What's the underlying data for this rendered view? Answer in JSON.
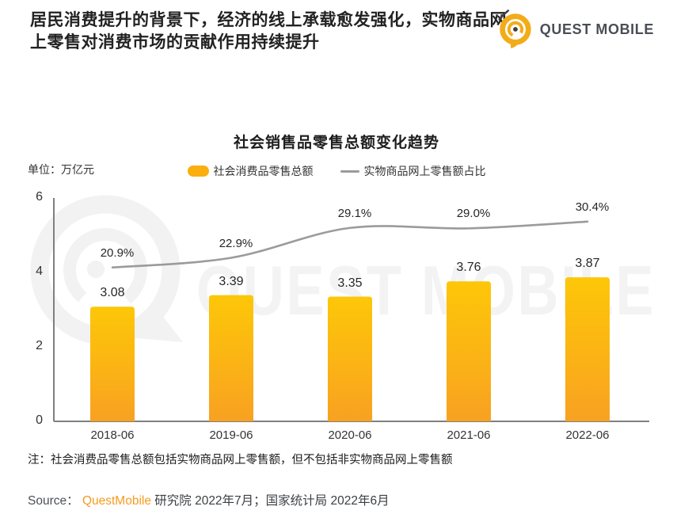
{
  "header": {
    "title": "居民消费提升的背景下，经济的线上承载愈发强化，实物商品网上零售对消费市场的贡献作用持续提升",
    "logo_brand": "QUEST MOBILE"
  },
  "chart": {
    "title": "社会销售品零售总额变化趋势",
    "unit_label": "单位：万亿元",
    "legend": [
      {
        "label": "社会消费品零售总额",
        "type": "bar",
        "color": "#FBAE10"
      },
      {
        "label": "实物商品网上零售额占比",
        "type": "line",
        "color": "#9B9B9B"
      }
    ]
  },
  "chart_data": {
    "type": "bar+line",
    "title": "社会销售品零售总额变化趋势",
    "unit": "万亿元",
    "categories": [
      "2018-06",
      "2019-06",
      "2020-06",
      "2021-06",
      "2022-06"
    ],
    "series": [
      {
        "name": "社会消费品零售总额",
        "type": "bar",
        "values": [
          3.08,
          3.39,
          3.35,
          3.76,
          3.87
        ],
        "unit": "万亿元",
        "color_top": "#FDC708",
        "color_bottom": "#F8A122"
      },
      {
        "name": "实物商品网上零售额占比",
        "type": "line",
        "values": [
          20.9,
          22.9,
          29.1,
          29.0,
          30.4
        ],
        "labels": [
          "20.9%",
          "22.9%",
          "29.1%",
          "29.0%",
          "30.4%"
        ],
        "unit": "%",
        "color": "#9B9B9B"
      }
    ],
    "ylim": [
      0,
      6
    ],
    "yticks": [
      0,
      2,
      4,
      6
    ],
    "secondary_ylim": [
      -11,
      35.3
    ],
    "grid": false,
    "legend_position": "top"
  },
  "watermark": "QUEST MOBILE",
  "footnote": "注：社会消费品零售总额包括实物商品网上零售额，但不包括非实物商品网上零售额",
  "source": {
    "prefix": "Source：",
    "brand": "QuestMobile",
    "rest": "研究院 2022年7月；国家统计局 2022年6月"
  },
  "colors": {
    "brand_yellow": "#F3AC19",
    "bar_top": "#FDC708",
    "bar_bottom": "#F8A122",
    "line_gray": "#9B9B9B",
    "axis_gray": "#7F7F7F"
  }
}
